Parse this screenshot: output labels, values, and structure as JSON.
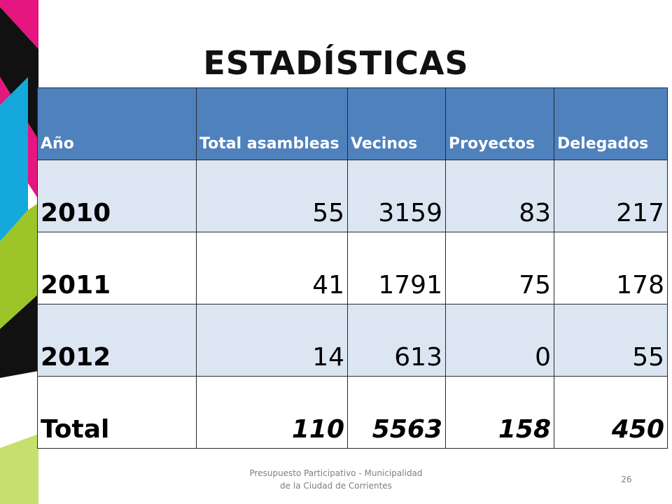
{
  "slide": {
    "title": "ESTADÍSTICAS"
  },
  "table": {
    "headers": [
      "Año",
      "Total asambleas",
      "Vecinos",
      "Proyectos",
      "Delegados"
    ],
    "rows": [
      {
        "year": "2010",
        "asambleas": "55",
        "vecinos": "3159",
        "proyectos": "83",
        "delegados": "217"
      },
      {
        "year": "2011",
        "asambleas": "41",
        "vecinos": "1791",
        "proyectos": "75",
        "delegados": "178"
      },
      {
        "year": "2012",
        "asambleas": "14",
        "vecinos": "613",
        "proyectos": "0",
        "delegados": "55"
      }
    ],
    "total": {
      "label": "Total",
      "asambleas": "110",
      "vecinos": "5563",
      "proyectos": "158",
      "delegados": "450"
    }
  },
  "footer": {
    "line1": "Presupuesto Participativo - Municipalidad",
    "line2": "de la Ciudad de Corrientes",
    "page_number": "26"
  },
  "colors": {
    "header_fill": "#4f81bd",
    "band_fill": "#dce6f2",
    "decor_magenta": "#e5167f",
    "decor_black": "#111111",
    "decor_cyan": "#14a8dc",
    "decor_lime": "#9dc52a"
  }
}
